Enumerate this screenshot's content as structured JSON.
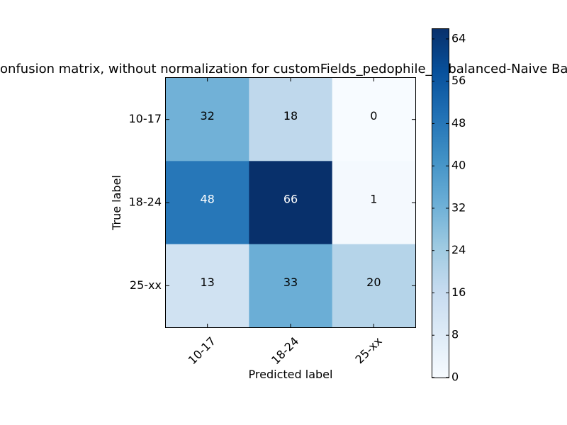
{
  "chart_data": {
    "type": "heatmap",
    "title": "Confusion matrix, without normalization for customFields_pedophile_unbalanced-Naive Bayes",
    "xlabel": "Predicted label",
    "ylabel": "True label",
    "x_categories": [
      "10-17",
      "18-24",
      "25-xx"
    ],
    "y_categories": [
      "10-17",
      "18-24",
      "25-xx"
    ],
    "values": [
      [
        32,
        18,
        0
      ],
      [
        48,
        66,
        1
      ],
      [
        13,
        33,
        20
      ]
    ],
    "colormap": "Blues",
    "colorbar": {
      "min": 0,
      "max": 66,
      "ticks": [
        0,
        8,
        16,
        24,
        32,
        40,
        48,
        56,
        64
      ]
    },
    "text_colors": {
      "light": "#ffffff",
      "dark": "#000000"
    },
    "grid": false
  }
}
